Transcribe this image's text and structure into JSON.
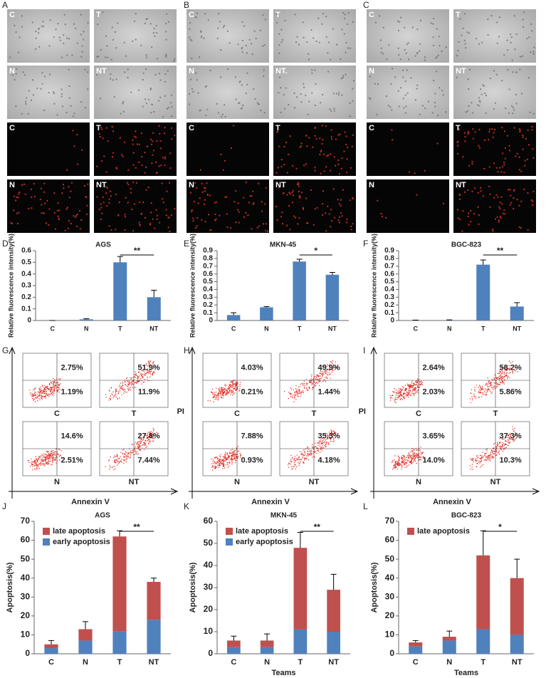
{
  "panel_labels": [
    "A",
    "B",
    "C",
    "D",
    "E",
    "F",
    "G",
    "H",
    "I",
    "J",
    "K",
    "L"
  ],
  "micrographs": [
    {
      "brightfield": [
        "C",
        "T",
        "N",
        "NT"
      ],
      "fluorescence": [
        "C",
        "T",
        "N",
        "NT"
      ]
    },
    {
      "brightfield": [
        "C",
        "T",
        "N",
        "NT."
      ],
      "fluorescence": [
        "C",
        "T",
        "N",
        "NT"
      ]
    },
    {
      "brightfield": [
        "C",
        "T",
        "N",
        "NT"
      ],
      "fluorescence": [
        "C",
        "T",
        "N",
        "NT"
      ]
    }
  ],
  "flow": [
    {
      "x_label": "Annexin V",
      "plots": [
        {
          "name": "C",
          "q2": "2.75%",
          "q3": "1.19%"
        },
        {
          "name": "T",
          "q2": "51.9%",
          "q3": "11.9%"
        },
        {
          "name": "N",
          "q2": "14.6%",
          "q3": "2.51%"
        },
        {
          "name": "NT",
          "q2": "27.8%",
          "q3": "7.44%"
        }
      ]
    },
    {
      "y_label": "PI",
      "x_label": "Annexin V",
      "plots": [
        {
          "name": "C",
          "q2": "4.03%",
          "q3": "0.21%"
        },
        {
          "name": "T",
          "q2": "49.9%",
          "q3": "1.44%"
        },
        {
          "name": "N",
          "q2": "7.88%",
          "q3": "0.93%"
        },
        {
          "name": "NT",
          "q2": "35.3%",
          "q3": "4.18%"
        }
      ]
    },
    {
      "y_label": "PI",
      "x_label": "Annexin V",
      "plots": [
        {
          "name": "C",
          "q2": "2.64%",
          "q3": "2.03%"
        },
        {
          "name": "T",
          "q2": "58.2%",
          "q3": "5.86%"
        },
        {
          "name": "N",
          "q2": "3.65%",
          "q3": "14.0%"
        },
        {
          "name": "NT",
          "q2": "37.3%",
          "q3": "10.3%"
        }
      ]
    }
  ],
  "chart_data": [
    {
      "type": "bar",
      "title": "AGS",
      "y_label": "Relative fluorescence intensity(%)",
      "categories": [
        "C",
        "N",
        "T",
        "NT"
      ],
      "values": [
        0,
        0.01,
        0.5,
        0.2
      ],
      "errors": [
        0,
        0.005,
        0.05,
        0.06
      ],
      "color": "#4f81bd",
      "ylim": [
        0,
        0.6
      ],
      "yticks": [
        0,
        0.1,
        0.2,
        0.3,
        0.4,
        0.5,
        0.6
      ],
      "annotation": "**"
    },
    {
      "type": "bar",
      "title": "MKN-45",
      "y_label": "Relative fluorescence intensity(%)",
      "categories": [
        "C",
        "N",
        "T",
        "NT"
      ],
      "values": [
        0.07,
        0.17,
        0.76,
        0.59
      ],
      "errors": [
        0.03,
        0.01,
        0.03,
        0.03
      ],
      "color": "#4f81bd",
      "ylim": [
        0,
        0.9
      ],
      "yticks": [
        0,
        0.1,
        0.2,
        0.3,
        0.4,
        0.5,
        0.6,
        0.7,
        0.8,
        0.9
      ],
      "annotation": "*"
    },
    {
      "type": "bar",
      "title": "BGC-823",
      "y_label": "Relative fluorescence intensity(%)",
      "categories": [
        "C",
        "N",
        "T",
        "NT"
      ],
      "values": [
        0.003,
        0.005,
        0.72,
        0.18
      ],
      "errors": [
        0.002,
        0.003,
        0.06,
        0.05
      ],
      "color": "#4f81bd",
      "ylim": [
        0,
        0.9
      ],
      "yticks": [
        0,
        0.1,
        0.2,
        0.3,
        0.4,
        0.5,
        0.6,
        0.7,
        0.8,
        0.9
      ],
      "annotation": "**"
    },
    {
      "type": "stacked_bar",
      "title": "AGS",
      "y_label": "Apoptosis(%)",
      "categories": [
        "C",
        "N",
        "T",
        "NT"
      ],
      "series": [
        {
          "name": "early apoptosis",
          "color": "#4f81bd",
          "values": [
            3,
            7,
            12,
            18
          ],
          "errors": [
            1,
            2,
            1,
            1
          ]
        },
        {
          "name": "late apoptosis",
          "color": "#c0504d",
          "values": [
            2,
            6,
            50,
            20
          ],
          "errors": [
            2,
            4,
            3,
            2
          ]
        }
      ],
      "ylim": [
        0,
        70
      ],
      "yticks": [
        0,
        10,
        20,
        30,
        40,
        50,
        60,
        70
      ],
      "annotation": "**"
    },
    {
      "type": "stacked_bar",
      "title": "MKN-45",
      "y_label": "Apoptosis(%)",
      "x_label": "Teams",
      "categories": [
        "C",
        "N",
        "T",
        "NT"
      ],
      "series": [
        {
          "name": "early apoptosis",
          "color": "#4f81bd",
          "values": [
            3,
            3,
            11,
            10
          ],
          "errors": [
            1,
            1,
            4,
            2
          ]
        },
        {
          "name": "late apoptosis",
          "color": "#c0504d",
          "values": [
            3,
            3,
            37,
            19
          ],
          "errors": [
            2,
            3,
            7,
            7
          ]
        }
      ],
      "ylim": [
        0,
        60
      ],
      "yticks": [
        0,
        10,
        20,
        30,
        40,
        50,
        60
      ],
      "annotation": "**"
    },
    {
      "type": "stacked_bar",
      "title": "BGC-823",
      "y_label": "Apoptosis(%)",
      "x_label": "Teams",
      "categories": [
        "C",
        "N",
        "T",
        "NT"
      ],
      "series": [
        {
          "color": "#4f81bd",
          "values": [
            4,
            7,
            13,
            10
          ],
          "errors": [
            1,
            1,
            10,
            8
          ]
        },
        {
          "name": "late apoptosis",
          "color": "#c0504d",
          "values": [
            2,
            2,
            39,
            30
          ],
          "errors": [
            1,
            3,
            13,
            10
          ]
        }
      ],
      "ylim": [
        0,
        70
      ],
      "yticks": [
        0,
        10,
        20,
        30,
        40,
        50,
        60,
        70
      ],
      "annotation": "*"
    }
  ]
}
